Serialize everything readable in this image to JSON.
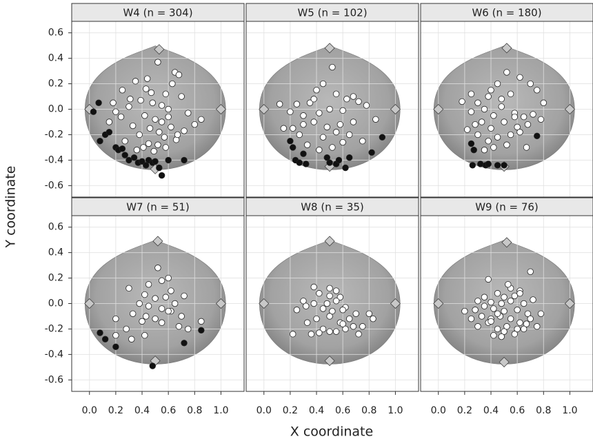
{
  "axes": {
    "xlabel": "X coordinate",
    "ylabel": "Y coordinate"
  },
  "chart_data": [
    {
      "type": "scatter",
      "title": "W4 (n = 304)",
      "xlim": [
        -0.135,
        1.176
      ],
      "ylim": [
        -0.69,
        0.69
      ],
      "grid": true,
      "xticks": [
        {
          "value": 0,
          "label": "0.0"
        },
        0.2,
        0.4,
        0.6,
        0.8,
        {
          "value": 1,
          "label": "1.0"
        }
      ],
      "yticks": [
        -0.6,
        -0.4,
        -0.2,
        {
          "value": 0,
          "label": "0.0"
        },
        0.2,
        0.4,
        0.6
      ],
      "series": [
        {
          "marker": "diamond",
          "color": "#c8c8c8",
          "x": [
            0,
            1,
            0.53,
            0.5
          ],
          "values": [
            0,
            0,
            0.47,
            -0.47
          ]
        },
        {
          "marker": "circle",
          "color": "#ffffff",
          "x": [
            0.52,
            0.65,
            0.68,
            0.63,
            0.44,
            0.35,
            0.25,
            0.58,
            0.7,
            0.39,
            0.48,
            0.55,
            0.3,
            0.2,
            0.15,
            0.42,
            0.5,
            0.6,
            0.75,
            0.8,
            0.33,
            0.46,
            0.53,
            0.62,
            0.38,
            0.27,
            0.57,
            0.45,
            0.66,
            0.41,
            0.36,
            0.49,
            0.55,
            0.72,
            0.24,
            0.6,
            0.47,
            0.31,
            0.52,
            0.43,
            0.67,
            0.58,
            0.85,
            0.18
          ],
          "values": [
            0.37,
            0.29,
            0.27,
            0.2,
            0.24,
            0.22,
            0.15,
            0.12,
            0.1,
            0.07,
            0.05,
            0.03,
            0.02,
            -0.02,
            -0.1,
            -0.05,
            -0.08,
            -0.06,
            -0.03,
            -0.12,
            -0.13,
            -0.15,
            -0.18,
            -0.14,
            -0.2,
            -0.25,
            -0.22,
            -0.27,
            -0.24,
            -0.3,
            -0.32,
            -0.33,
            -0.1,
            -0.17,
            -0.06,
            0.0,
            0.13,
            0.08,
            -0.28,
            0.16,
            -0.2,
            -0.3,
            -0.08,
            0.05
          ]
        },
        {
          "marker": "circle",
          "color": "#111111",
          "x": [
            0.03,
            0.07,
            0.08,
            0.12,
            0.15,
            0.2,
            0.22,
            0.25,
            0.27,
            0.3,
            0.34,
            0.37,
            0.4,
            0.43,
            0.45,
            0.48,
            0.5,
            0.53,
            0.55,
            0.6,
            0.72
          ],
          "values": [
            -0.02,
            0.05,
            -0.25,
            -0.2,
            -0.18,
            -0.3,
            -0.32,
            -0.31,
            -0.36,
            -0.4,
            -0.38,
            -0.42,
            -0.41,
            -0.44,
            -0.4,
            -0.42,
            -0.41,
            -0.46,
            -0.52,
            -0.4,
            -0.4
          ]
        }
      ]
    },
    {
      "type": "scatter",
      "title": "W5 (n = 102)",
      "xlim": [
        -0.135,
        1.176
      ],
      "ylim": [
        -0.69,
        0.69
      ],
      "grid": true,
      "xticks": [
        {
          "value": 0,
          "label": "0.0"
        },
        0.2,
        0.4,
        0.6,
        0.8,
        {
          "value": 1,
          "label": "1.0"
        }
      ],
      "yticks": [
        -0.6,
        -0.4,
        -0.2,
        {
          "value": 0,
          "label": "0.0"
        },
        0.2,
        0.4,
        0.6
      ],
      "series": [
        {
          "marker": "diamond",
          "color": "#c8c8c8",
          "x": [
            0,
            1,
            0.5,
            0.5
          ],
          "values": [
            0,
            0,
            0.48,
            -0.45
          ]
        },
        {
          "marker": "circle",
          "color": "#ffffff",
          "x": [
            0.52,
            0.4,
            0.25,
            0.45,
            0.55,
            0.63,
            0.72,
            0.35,
            0.68,
            0.78,
            0.12,
            0.2,
            0.3,
            0.42,
            0.5,
            0.6,
            0.3,
            0.22,
            0.38,
            0.48,
            0.58,
            0.68,
            0.15,
            0.27,
            0.45,
            0.55,
            0.65,
            0.33,
            0.42,
            0.52,
            0.75,
            0.85,
            0.6,
            0.38
          ],
          "values": [
            0.33,
            0.15,
            0.04,
            0.2,
            0.12,
            0.08,
            0.06,
            0.05,
            0.1,
            0.03,
            0.04,
            -0.02,
            -0.05,
            -0.03,
            0.0,
            -0.01,
            -0.12,
            -0.15,
            -0.1,
            -0.14,
            -0.12,
            -0.1,
            -0.15,
            -0.2,
            -0.22,
            -0.18,
            -0.2,
            -0.28,
            -0.32,
            -0.3,
            -0.25,
            -0.08,
            -0.26,
            0.08
          ]
        },
        {
          "marker": "circle",
          "color": "#111111",
          "x": [
            0.2,
            0.22,
            0.24,
            0.27,
            0.3,
            0.32,
            0.48,
            0.5,
            0.55,
            0.57,
            0.62,
            0.65,
            0.82,
            0.9
          ],
          "values": [
            -0.25,
            -0.3,
            -0.4,
            -0.42,
            -0.35,
            -0.43,
            -0.38,
            -0.42,
            -0.43,
            -0.4,
            -0.46,
            -0.38,
            -0.34,
            -0.22
          ]
        }
      ]
    },
    {
      "type": "scatter",
      "title": "W6 (n = 180)",
      "xlim": [
        -0.135,
        1.176
      ],
      "ylim": [
        -0.69,
        0.69
      ],
      "grid": true,
      "xticks": [
        {
          "value": 0,
          "label": "0.0"
        },
        0.2,
        0.4,
        0.6,
        0.8,
        {
          "value": 1,
          "label": "1.0"
        }
      ],
      "yticks": [
        -0.6,
        -0.4,
        -0.2,
        {
          "value": 0,
          "label": "0.0"
        },
        0.2,
        0.4,
        0.6
      ],
      "series": [
        {
          "marker": "diamond",
          "color": "#c8c8c8",
          "x": [
            0,
            1,
            0.52,
            0.5
          ],
          "values": [
            0,
            0,
            0.48,
            -0.45
          ]
        },
        {
          "marker": "circle",
          "color": "#ffffff",
          "x": [
            0.52,
            0.62,
            0.7,
            0.75,
            0.8,
            0.45,
            0.55,
            0.38,
            0.3,
            0.18,
            0.25,
            0.35,
            0.42,
            0.48,
            0.58,
            0.65,
            0.72,
            0.28,
            0.33,
            0.4,
            0.5,
            0.6,
            0.68,
            0.78,
            0.22,
            0.3,
            0.38,
            0.45,
            0.55,
            0.62,
            0.42,
            0.52,
            0.35,
            0.48,
            0.58,
            0.67,
            0.25,
            0.4
          ],
          "values": [
            0.29,
            0.25,
            0.2,
            0.15,
            0.05,
            0.2,
            0.12,
            0.1,
            0.05,
            0.06,
            -0.02,
            0.0,
            -0.05,
            0.02,
            -0.03,
            -0.06,
            -0.04,
            -0.12,
            -0.1,
            -0.15,
            -0.1,
            -0.14,
            -0.12,
            -0.08,
            -0.16,
            -0.2,
            -0.25,
            -0.22,
            -0.2,
            -0.18,
            -0.3,
            -0.28,
            -0.32,
            0.08,
            -0.06,
            -0.3,
            0.12,
            0.15
          ]
        },
        {
          "marker": "circle",
          "color": "#111111",
          "x": [
            0.25,
            0.27,
            0.26,
            0.32,
            0.36,
            0.38,
            0.45,
            0.5,
            0.75
          ],
          "values": [
            -0.27,
            -0.32,
            -0.44,
            -0.43,
            -0.44,
            -0.43,
            -0.44,
            -0.44,
            -0.21
          ]
        }
      ]
    },
    {
      "type": "scatter",
      "title": "W7 (n = 51)",
      "xlim": [
        -0.135,
        1.176
      ],
      "ylim": [
        -0.69,
        0.69
      ],
      "grid": true,
      "xticks": [
        {
          "value": 0,
          "label": "0.0"
        },
        0.2,
        0.4,
        0.6,
        0.8,
        {
          "value": 1,
          "label": "1.0"
        }
      ],
      "yticks": [
        -0.6,
        -0.4,
        -0.2,
        {
          "value": 0,
          "label": "0.0"
        },
        0.2,
        0.4,
        0.6
      ],
      "series": [
        {
          "marker": "diamond",
          "color": "#c8c8c8",
          "x": [
            0,
            1,
            0.52,
            0.5
          ],
          "values": [
            0,
            0,
            0.49,
            -0.45
          ]
        },
        {
          "marker": "circle",
          "color": "#ffffff",
          "x": [
            0.52,
            0.6,
            0.55,
            0.45,
            0.62,
            0.72,
            0.3,
            0.42,
            0.5,
            0.58,
            0.65,
            0.38,
            0.45,
            0.55,
            0.62,
            0.2,
            0.33,
            0.43,
            0.5,
            0.6,
            0.7,
            0.28,
            0.4,
            0.55,
            0.68,
            0.75,
            0.85,
            0.2,
            0.32,
            0.42
          ],
          "values": [
            0.28,
            0.2,
            0.18,
            0.15,
            0.1,
            0.06,
            0.12,
            0.07,
            0.04,
            0.05,
            0.0,
            0.0,
            -0.02,
            -0.04,
            -0.06,
            -0.12,
            -0.08,
            -0.1,
            -0.12,
            -0.06,
            -0.1,
            -0.2,
            -0.14,
            -0.15,
            -0.18,
            -0.2,
            -0.14,
            -0.25,
            -0.28,
            -0.25
          ]
        },
        {
          "marker": "circle",
          "color": "#111111",
          "x": [
            0.08,
            0.12,
            0.2,
            0.48,
            0.72,
            0.85
          ],
          "values": [
            -0.23,
            -0.28,
            -0.34,
            -0.49,
            -0.31,
            -0.21
          ]
        }
      ]
    },
    {
      "type": "scatter",
      "title": "W8 (n = 35)",
      "xlim": [
        -0.135,
        1.176
      ],
      "ylim": [
        -0.69,
        0.69
      ],
      "grid": true,
      "xticks": [
        {
          "value": 0,
          "label": "0.0"
        },
        0.2,
        0.4,
        0.6,
        0.8,
        {
          "value": 1,
          "label": "1.0"
        }
      ],
      "yticks": [
        -0.6,
        -0.4,
        -0.2,
        {
          "value": 0,
          "label": "0.0"
        },
        0.2,
        0.4,
        0.6
      ],
      "series": [
        {
          "marker": "diamond",
          "color": "#c8c8c8",
          "x": [
            0,
            1,
            0.5,
            0.5
          ],
          "values": [
            0,
            0,
            0.49,
            -0.45
          ]
        },
        {
          "marker": "circle",
          "color": "#ffffff",
          "x": [
            0.38,
            0.5,
            0.55,
            0.42,
            0.5,
            0.58,
            0.3,
            0.38,
            0.48,
            0.55,
            0.62,
            0.25,
            0.32,
            0.45,
            0.52,
            0.6,
            0.7,
            0.4,
            0.5,
            0.58,
            0.65,
            0.8,
            0.75,
            0.33,
            0.45,
            0.55,
            0.62,
            0.72,
            0.22,
            0.36,
            0.42,
            0.5,
            0.6,
            0.68,
            0.83
          ],
          "values": [
            0.13,
            0.12,
            0.1,
            0.08,
            0.06,
            0.05,
            0.02,
            0.0,
            0.0,
            0.02,
            -0.03,
            -0.05,
            -0.02,
            -0.04,
            -0.06,
            -0.05,
            -0.08,
            -0.12,
            -0.1,
            -0.15,
            -0.12,
            -0.08,
            -0.18,
            -0.15,
            -0.2,
            -0.22,
            -0.2,
            -0.24,
            -0.24,
            -0.24,
            -0.23,
            -0.22,
            -0.16,
            -0.18,
            -0.12
          ]
        }
      ]
    },
    {
      "type": "scatter",
      "title": "W9 (n = 76)",
      "xlim": [
        -0.135,
        1.176
      ],
      "ylim": [
        -0.69,
        0.69
      ],
      "grid": true,
      "xticks": [
        {
          "value": 0,
          "label": "0.0"
        },
        0.2,
        0.4,
        0.6,
        0.8,
        {
          "value": 1,
          "label": "1.0"
        }
      ],
      "yticks": [
        -0.6,
        -0.4,
        -0.2,
        {
          "value": 0,
          "label": "0.0"
        },
        0.2,
        0.4,
        0.6
      ],
      "series": [
        {
          "marker": "diamond",
          "color": "#c8c8c8",
          "x": [
            0,
            1,
            0.52,
            0.5
          ],
          "values": [
            0,
            0,
            0.48,
            -0.46
          ]
        },
        {
          "marker": "circle",
          "color": "#ffffff",
          "x": [
            0.7,
            0.38,
            0.55,
            0.62,
            0.45,
            0.5,
            0.58,
            0.3,
            0.4,
            0.48,
            0.55,
            0.65,
            0.72,
            0.2,
            0.28,
            0.35,
            0.42,
            0.5,
            0.6,
            0.68,
            0.25,
            0.33,
            0.4,
            0.47,
            0.55,
            0.62,
            0.7,
            0.78,
            0.3,
            0.38,
            0.45,
            0.52,
            0.6,
            0.67,
            0.42,
            0.5,
            0.58,
            0.65,
            0.35,
            0.45,
            0.53,
            0.75,
            0.62,
            0.48,
            0.4
          ],
          "values": [
            0.25,
            0.19,
            0.12,
            0.1,
            0.08,
            0.05,
            0.06,
            0.02,
            0.01,
            0.0,
            0.02,
            0.0,
            0.03,
            -0.06,
            -0.05,
            -0.02,
            -0.04,
            -0.06,
            -0.05,
            -0.08,
            -0.12,
            -0.1,
            -0.12,
            -0.1,
            -0.12,
            -0.15,
            -0.12,
            -0.08,
            -0.18,
            -0.15,
            -0.2,
            -0.18,
            -0.2,
            -0.16,
            -0.25,
            -0.22,
            -0.24,
            -0.2,
            0.05,
            -0.08,
            0.15,
            -0.18,
            0.08,
            -0.26,
            -0.14
          ]
        }
      ]
    }
  ]
}
